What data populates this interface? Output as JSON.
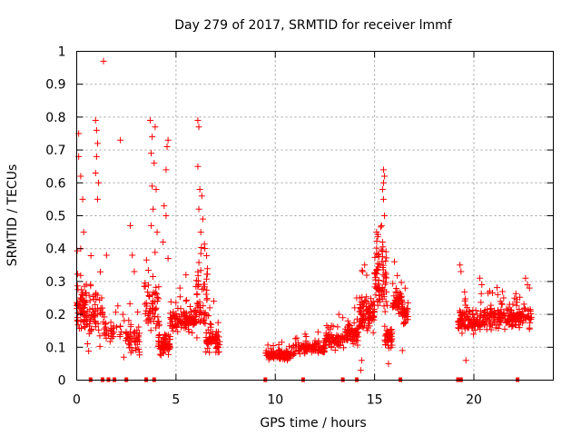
{
  "chart_data": {
    "type": "scatter",
    "title": "Day 279 of 2017, SRMTID for receiver lmmf",
    "xlabel": "GPS time / hours",
    "ylabel": "SRMTID / TECUs",
    "xlim": [
      0,
      24
    ],
    "ylim": [
      0,
      1
    ],
    "x_ticks": [
      0,
      5,
      10,
      15,
      20
    ],
    "y_ticks": [
      0,
      0.1,
      0.2,
      0.3,
      0.4,
      0.5,
      0.6,
      0.7,
      0.8,
      0.9,
      1
    ],
    "x_tick_labels": [
      "0",
      "5",
      "10",
      "15",
      "20"
    ],
    "y_tick_labels": [
      "0",
      "0.1",
      "0.2",
      "0.3",
      "0.4",
      "0.5",
      "0.6",
      "0.7",
      "0.8",
      "0.9",
      "1"
    ],
    "grid": true,
    "marker": "+",
    "color": "#ff0000",
    "zero_markers_x": [
      0.7,
      1.3,
      1.6,
      1.9,
      2.5,
      3.5,
      3.9,
      9.5,
      11.4,
      13.4,
      14.1,
      16.3,
      19.2,
      19.35,
      22.2
    ],
    "clusters": [
      {
        "x": [
          0.0,
          0.5
        ],
        "base": 0.22,
        "spread": 0.1,
        "n": 70,
        "spikes": [
          [
            0.1,
            0.75
          ],
          [
            0.2,
            0.62
          ],
          [
            0.3,
            0.55
          ],
          [
            0.1,
            0.68
          ],
          [
            0.35,
            0.45
          ],
          [
            0.2,
            0.4
          ]
        ]
      },
      {
        "x": [
          0.5,
          1.3
        ],
        "base": 0.2,
        "spread": 0.12,
        "n": 60,
        "spikes": [
          [
            0.95,
            0.79
          ],
          [
            1.0,
            0.76
          ],
          [
            1.05,
            0.72
          ],
          [
            1.0,
            0.68
          ],
          [
            0.95,
            0.63
          ],
          [
            1.1,
            0.6
          ],
          [
            1.05,
            0.55
          ],
          [
            1.35,
            0.97
          ]
        ]
      },
      {
        "x": [
          1.3,
          2.3
        ],
        "base": 0.15,
        "spread": 0.06,
        "n": 35,
        "spikes": [
          [
            2.2,
            0.73
          ],
          [
            1.5,
            0.38
          ]
        ]
      },
      {
        "x": [
          2.3,
          3.2
        ],
        "base": 0.12,
        "spread": 0.08,
        "n": 50,
        "spikes": [
          [
            2.7,
            0.47
          ],
          [
            2.8,
            0.38
          ],
          [
            2.9,
            0.33
          ]
        ]
      },
      {
        "x": [
          3.4,
          4.2
        ],
        "base": 0.22,
        "spread": 0.12,
        "n": 60,
        "spikes": [
          [
            3.7,
            0.79
          ],
          [
            3.8,
            0.74
          ],
          [
            3.95,
            0.77
          ],
          [
            3.75,
            0.69
          ],
          [
            3.9,
            0.66
          ],
          [
            3.8,
            0.59
          ],
          [
            4.0,
            0.58
          ],
          [
            3.85,
            0.52
          ],
          [
            3.75,
            0.47
          ],
          [
            4.05,
            0.45
          ]
        ]
      },
      {
        "x": [
          4.1,
          4.7
        ],
        "base": 0.11,
        "spread": 0.05,
        "n": 60,
        "spikes": [
          [
            4.4,
            0.53
          ],
          [
            4.5,
            0.5
          ],
          [
            4.35,
            0.42
          ],
          [
            4.6,
            0.37
          ],
          [
            4.6,
            0.73
          ],
          [
            4.55,
            0.71
          ],
          [
            4.5,
            0.64
          ]
        ]
      },
      {
        "x": [
          4.7,
          6.0
        ],
        "base": 0.18,
        "spread": 0.05,
        "n": 110,
        "spikes": [
          [
            5.5,
            0.32
          ],
          [
            5.2,
            0.28
          ]
        ]
      },
      {
        "x": [
          6.0,
          6.6
        ],
        "base": 0.25,
        "spread": 0.14,
        "n": 60,
        "spikes": [
          [
            6.1,
            0.79
          ],
          [
            6.15,
            0.77
          ],
          [
            6.1,
            0.65
          ],
          [
            6.2,
            0.58
          ],
          [
            6.3,
            0.56
          ],
          [
            6.15,
            0.52
          ],
          [
            6.35,
            0.49
          ],
          [
            6.25,
            0.45
          ]
        ]
      },
      {
        "x": [
          6.5,
          7.2
        ],
        "base": 0.12,
        "spread": 0.05,
        "n": 60,
        "spikes": [
          [
            6.7,
            0.22
          ],
          [
            6.9,
            0.24
          ]
        ]
      },
      {
        "x": [
          9.5,
          11.0
        ],
        "base": 0.075,
        "spread": 0.02,
        "n": 110,
        "spikes": []
      },
      {
        "x": [
          11.0,
          12.5
        ],
        "base": 0.095,
        "spread": 0.025,
        "n": 95,
        "spikes": [
          [
            11.5,
            0.14
          ],
          [
            12.0,
            0.12
          ]
        ]
      },
      {
        "x": [
          12.5,
          13.5
        ],
        "base": 0.12,
        "spread": 0.04,
        "n": 70,
        "spikes": [
          [
            13.2,
            0.2
          ],
          [
            13.4,
            0.19
          ]
        ]
      },
      {
        "x": [
          13.5,
          14.2
        ],
        "base": 0.14,
        "spread": 0.04,
        "n": 60,
        "spikes": [
          [
            14.0,
            0.22
          ],
          [
            14.1,
            0.25
          ]
        ]
      },
      {
        "x": [
          14.2,
          15.0
        ],
        "base": 0.2,
        "spread": 0.08,
        "n": 90,
        "spikes": [
          [
            14.5,
            0.35
          ],
          [
            14.4,
            0.33
          ],
          [
            14.3,
            0.03
          ],
          [
            14.35,
            0.06
          ]
        ]
      },
      {
        "x": [
          15.0,
          15.6
        ],
        "base": 0.3,
        "spread": 0.12,
        "n": 80,
        "spikes": [
          [
            15.45,
            0.64
          ],
          [
            15.5,
            0.62
          ],
          [
            15.45,
            0.6
          ],
          [
            15.4,
            0.58
          ],
          [
            15.45,
            0.55
          ],
          [
            15.5,
            0.5
          ],
          [
            15.35,
            0.47
          ],
          [
            15.4,
            0.42
          ]
        ]
      },
      {
        "x": [
          15.5,
          15.9
        ],
        "base": 0.13,
        "spread": 0.06,
        "n": 45,
        "spikes": [
          [
            15.7,
            0.05
          ]
        ]
      },
      {
        "x": [
          15.9,
          16.4
        ],
        "base": 0.24,
        "spread": 0.05,
        "n": 50,
        "spikes": [
          [
            16.0,
            0.36
          ]
        ]
      },
      {
        "x": [
          16.4,
          16.7
        ],
        "base": 0.2,
        "spread": 0.05,
        "n": 30,
        "spikes": [
          [
            16.4,
            0.09
          ]
        ]
      },
      {
        "x": [
          19.2,
          20.5
        ],
        "base": 0.18,
        "spread": 0.05,
        "n": 110,
        "spikes": [
          [
            19.3,
            0.35
          ],
          [
            19.35,
            0.33
          ],
          [
            20.3,
            0.31
          ],
          [
            20.4,
            0.29
          ],
          [
            19.6,
            0.06
          ]
        ]
      },
      {
        "x": [
          20.5,
          22.0
        ],
        "base": 0.19,
        "spread": 0.05,
        "n": 120,
        "spikes": [
          [
            20.8,
            0.27
          ],
          [
            21.2,
            0.26
          ],
          [
            21.5,
            0.25
          ]
        ]
      },
      {
        "x": [
          22.0,
          22.9
        ],
        "base": 0.19,
        "spread": 0.05,
        "n": 70,
        "spikes": [
          [
            22.6,
            0.31
          ],
          [
            22.7,
            0.29
          ],
          [
            22.8,
            0.28
          ]
        ]
      }
    ]
  }
}
